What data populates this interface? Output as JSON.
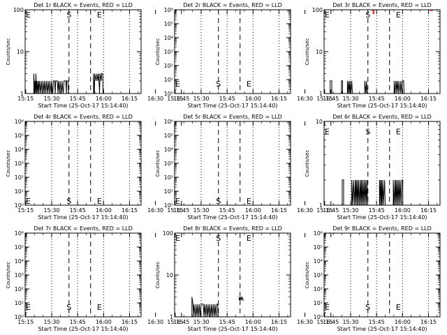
{
  "figure": {
    "time_ticks": [
      "15:15",
      "15:30",
      "15:45",
      "16:00",
      "16:15",
      "16:30",
      "16:45"
    ],
    "time_range_min": [
      0,
      67
    ],
    "start_label": "Start Time (25-Oct-17 15:14:40)",
    "ylabel": "Counts/sec",
    "colors": {
      "events": "#000000",
      "lld": "#ff0000"
    },
    "markers": {
      "dotted_lines_min": [
        15.33,
        30.33,
        45.33,
        60.33
      ],
      "dashed_lines_min": [
        25.33,
        37.83
      ],
      "S_min": 25.33,
      "E_min": 40.33
    }
  },
  "chart_data": [
    {
      "type": "line",
      "title": "Det 1r BLACK = Events, RED = LLD",
      "xlabel": "Start Time (25-Oct-17 15:14:40)",
      "ylabel": "Counts/sec",
      "yscale": "log",
      "ylim": [
        1,
        100
      ],
      "yticks": [
        {
          "v": 1,
          "t": "1"
        },
        {
          "v": 10,
          "t": "10"
        },
        {
          "v": 100,
          "t": "100"
        }
      ],
      "label_y": {
        "S": 100,
        "E": 100
      },
      "events": [
        [
          5.0,
          1
        ],
        [
          5.0,
          3
        ],
        [
          5.5,
          1
        ],
        [
          5.7,
          2
        ],
        [
          6.0,
          1
        ],
        [
          6.2,
          3
        ],
        [
          6.6,
          1
        ],
        [
          6.8,
          2
        ],
        [
          7.3,
          1
        ],
        [
          7.5,
          2
        ],
        [
          8.0,
          1
        ],
        [
          8.2,
          2
        ],
        [
          9.0,
          1
        ],
        [
          9.2,
          2
        ],
        [
          10.0,
          1
        ],
        [
          10.2,
          2
        ],
        [
          11.0,
          1
        ],
        [
          11.2,
          2
        ],
        [
          12.0,
          1
        ],
        [
          12.2,
          2
        ],
        [
          13.0,
          1
        ],
        [
          13.2,
          2
        ],
        [
          14.0,
          1
        ],
        [
          14.2,
          2
        ],
        [
          15.0,
          1
        ],
        [
          15.2,
          2
        ],
        [
          16.0,
          1
        ],
        [
          16.3,
          2
        ],
        [
          17.0,
          2
        ],
        [
          17.4,
          1
        ],
        [
          17.6,
          2
        ],
        [
          18.5,
          2
        ],
        [
          19.0,
          1
        ],
        [
          19.2,
          2
        ],
        [
          20.0,
          1
        ],
        [
          20.2,
          2
        ],
        [
          21.0,
          1
        ],
        [
          21.3,
          2
        ],
        [
          22.0,
          1
        ],
        [
          22.5,
          2
        ],
        [
          23.5,
          2
        ],
        [
          23.8,
          1
        ],
        [
          24.0,
          2
        ],
        [
          24.8,
          2
        ],
        [
          25.0,
          1
        ]
      ],
      "events_b": [
        [
          39.5,
          1
        ],
        [
          39.5,
          3
        ],
        [
          40.0,
          1
        ],
        [
          40.3,
          3
        ],
        [
          41.0,
          2
        ],
        [
          41.5,
          3
        ],
        [
          42.0,
          2
        ],
        [
          42.5,
          3
        ],
        [
          43.0,
          1
        ],
        [
          43.3,
          3
        ],
        [
          44.0,
          2
        ],
        [
          44.2,
          3
        ],
        [
          44.8,
          3
        ],
        [
          45.0,
          1
        ]
      ],
      "lld": []
    },
    {
      "type": "line",
      "title": "Det 2r BLACK = Events, RED = LLD",
      "xlabel": "Start Time (25-Oct-17 15:14:40)",
      "ylabel": "Counts/sec",
      "yscale": "log",
      "ylim": [
        1,
        1000000
      ],
      "yticks": [
        {
          "v": 1,
          "t": "10⁰"
        },
        {
          "v": 10,
          "t": "10¹"
        },
        {
          "v": 100,
          "t": "10²"
        },
        {
          "v": 1000,
          "t": "10³"
        },
        {
          "v": 10000,
          "t": "10⁴"
        },
        {
          "v": 100000,
          "t": "10⁵"
        },
        {
          "v": 1000000,
          "t": "10⁶"
        }
      ],
      "label_y": {
        "S": 10,
        "E": 10
      },
      "events": [],
      "events_b": [],
      "lld": []
    },
    {
      "type": "line",
      "title": "Det 3r BLACK = Events, RED = LLD",
      "xlabel": "Start Time (25-Oct-17 15:14:40)",
      "ylabel": "Counts/sec",
      "yscale": "log",
      "ylim": [
        1,
        100
      ],
      "yticks": [
        {
          "v": 1,
          "t": "1"
        },
        {
          "v": 10,
          "t": "10"
        },
        {
          "v": 100,
          "t": "100"
        }
      ],
      "label_y": {
        "S": 100,
        "E": 100
      },
      "events": [
        [
          3.5,
          1
        ],
        [
          3.5,
          2
        ],
        [
          4.5,
          2
        ],
        [
          4.5,
          1
        ],
        [
          10.0,
          1
        ],
        [
          10.0,
          2
        ],
        [
          10.7,
          2
        ],
        [
          10.7,
          1
        ],
        [
          13.5,
          1
        ],
        [
          13.5,
          2
        ],
        [
          14.0,
          1
        ],
        [
          14.3,
          2
        ],
        [
          14.8,
          1
        ],
        [
          15.0,
          2
        ],
        [
          15.5,
          1
        ],
        [
          16.0,
          2
        ],
        [
          16.4,
          1
        ],
        [
          23.5,
          1
        ],
        [
          23.5,
          2
        ],
        [
          24.2,
          1
        ],
        [
          24.5,
          2
        ],
        [
          25.0,
          1
        ]
      ],
      "events_b": [
        [
          40.5,
          1
        ],
        [
          40.5,
          2
        ],
        [
          41.0,
          1
        ],
        [
          41.5,
          2
        ],
        [
          42.0,
          1
        ],
        [
          42.2,
          2
        ],
        [
          43.0,
          1
        ],
        [
          43.2,
          2
        ],
        [
          44.0,
          1
        ],
        [
          44.3,
          2
        ],
        [
          45.0,
          1
        ],
        [
          45.3,
          2
        ],
        [
          46.0,
          2
        ],
        [
          46.2,
          1
        ]
      ],
      "lld": [
        [
          27.5,
          95
        ],
        [
          28.3,
          95
        ],
        [
          28.3,
          80
        ],
        [
          28.8,
          80
        ],
        [
          28.8,
          95
        ],
        [
          29.2,
          95
        ]
      ],
      "lld_b": [
        [
          61.0,
          95
        ],
        [
          63.0,
          95
        ]
      ]
    },
    {
      "type": "line",
      "title": "Det 4r BLACK = Events, RED = LLD",
      "xlabel": "Start Time (25-Oct-17 15:14:40)",
      "ylabel": "Counts/sec",
      "yscale": "log",
      "ylim": [
        1,
        1000000
      ],
      "yticks": [
        {
          "v": 1,
          "t": "10⁰"
        },
        {
          "v": 10,
          "t": "10¹"
        },
        {
          "v": 100,
          "t": "10²"
        },
        {
          "v": 1000,
          "t": "10³"
        },
        {
          "v": 10000,
          "t": "10⁴"
        },
        {
          "v": 100000,
          "t": "10⁵"
        },
        {
          "v": 1000000,
          "t": "10⁶"
        }
      ],
      "label_y": {
        "S": 1,
        "E": 1
      },
      "events": [],
      "events_b": [],
      "lld": []
    },
    {
      "type": "line",
      "title": "Det 5r BLACK = Events, RED = LLD",
      "xlabel": "Start Time (25-Oct-17 15:14:40)",
      "ylabel": "Counts/sec",
      "yscale": "log",
      "ylim": [
        1,
        1000000
      ],
      "yticks": [
        {
          "v": 1,
          "t": "10⁰"
        },
        {
          "v": 10,
          "t": "10¹"
        },
        {
          "v": 100,
          "t": "10²"
        },
        {
          "v": 1000,
          "t": "10³"
        },
        {
          "v": 10000,
          "t": "10⁴"
        },
        {
          "v": 100000,
          "t": "10⁵"
        },
        {
          "v": 1000000,
          "t": "10⁶"
        }
      ],
      "label_y": {
        "S": 1,
        "E": 1
      },
      "events": [],
      "events_b": [],
      "lld": []
    },
    {
      "type": "line",
      "title": "Det 6r BLACK = Events, RED = LLD",
      "xlabel": "Start Time (25-Oct-17 15:14:40)",
      "ylabel": "Counts/sec",
      "yscale": "log",
      "ylim": [
        1,
        10
      ],
      "yticks": [
        {
          "v": 1,
          "t": "1"
        },
        {
          "v": 10,
          "t": "10"
        }
      ],
      "label_y": {
        "S": 8.5,
        "E": 8.5
      },
      "events": [
        [
          10.5,
          1
        ],
        [
          10.5,
          2
        ],
        [
          11.3,
          2
        ],
        [
          11.3,
          1
        ],
        [
          16.0,
          1
        ],
        [
          16.0,
          2
        ],
        [
          16.5,
          1
        ],
        [
          17.0,
          2
        ],
        [
          17.5,
          1
        ],
        [
          18.0,
          2
        ],
        [
          18.3,
          1
        ],
        [
          18.6,
          2
        ],
        [
          19.0,
          1
        ],
        [
          19.3,
          2
        ],
        [
          19.7,
          1
        ],
        [
          20.0,
          2
        ],
        [
          20.5,
          1
        ],
        [
          21.0,
          2
        ],
        [
          21.3,
          1
        ],
        [
          21.6,
          2
        ],
        [
          22.0,
          1
        ],
        [
          22.4,
          2
        ],
        [
          22.8,
          1
        ],
        [
          23.2,
          2
        ],
        [
          23.6,
          1
        ],
        [
          24.0,
          2
        ],
        [
          24.4,
          1
        ],
        [
          24.8,
          2
        ],
        [
          25.2,
          1
        ]
      ],
      "events_b": [
        [
          32.0,
          1
        ],
        [
          32.0,
          2
        ],
        [
          32.3,
          1
        ],
        [
          32.6,
          2
        ],
        [
          33.0,
          1
        ],
        [
          33.2,
          2
        ],
        [
          33.5,
          1
        ],
        [
          34.0,
          2
        ],
        [
          34.3,
          1
        ],
        [
          35.0,
          2
        ],
        [
          35.3,
          1
        ],
        [
          40.0,
          1
        ],
        [
          40.0,
          2
        ],
        [
          40.5,
          1
        ],
        [
          41.0,
          2
        ],
        [
          41.3,
          1
        ],
        [
          41.6,
          2
        ],
        [
          42.0,
          1
        ],
        [
          42.4,
          2
        ],
        [
          42.8,
          1
        ],
        [
          43.2,
          2
        ],
        [
          43.6,
          1
        ],
        [
          44.0,
          2
        ],
        [
          44.5,
          1
        ],
        [
          45.0,
          2
        ],
        [
          45.5,
          2
        ],
        [
          45.5,
          1
        ]
      ],
      "lld": []
    },
    {
      "type": "line",
      "title": "Det 7r BLACK = Events, RED = LLD",
      "xlabel": "Start Time (25-Oct-17 15:14:40)",
      "ylabel": "Counts/sec",
      "yscale": "log",
      "ylim": [
        1,
        1000000
      ],
      "yticks": [
        {
          "v": 1,
          "t": "10⁰"
        },
        {
          "v": 10,
          "t": "10¹"
        },
        {
          "v": 100,
          "t": "10²"
        },
        {
          "v": 1000,
          "t": "10³"
        },
        {
          "v": 10000,
          "t": "10⁴"
        },
        {
          "v": 100000,
          "t": "10⁵"
        },
        {
          "v": 1000000,
          "t": "10⁶"
        }
      ],
      "label_y": {
        "S": 10,
        "E": 10
      },
      "events": [],
      "events_b": [],
      "lld": []
    },
    {
      "type": "line",
      "title": "Det 8r BLACK = Events, RED = LLD",
      "xlabel": "Start Time (25-Oct-17 15:14:40)",
      "ylabel": "Counts/sec",
      "yscale": "log",
      "ylim": [
        1,
        100
      ],
      "yticks": [
        {
          "v": 1,
          "t": "1"
        },
        {
          "v": 10,
          "t": "10"
        },
        {
          "v": 100,
          "t": "100"
        }
      ],
      "label_y": {
        "S": 100,
        "E": 100
      },
      "events": [
        [
          10.0,
          1
        ],
        [
          10.0,
          3
        ],
        [
          10.6,
          2
        ],
        [
          11.0,
          1
        ],
        [
          11.2,
          2
        ],
        [
          12.0,
          1
        ],
        [
          12.3,
          2
        ],
        [
          13.0,
          1
        ],
        [
          13.3,
          2
        ],
        [
          14.0,
          1
        ],
        [
          14.3,
          2
        ],
        [
          15.0,
          1
        ],
        [
          15.3,
          2
        ],
        [
          16.5,
          2
        ],
        [
          17.0,
          1
        ],
        [
          17.3,
          2
        ],
        [
          18.0,
          1
        ],
        [
          18.3,
          2
        ],
        [
          19.0,
          1
        ],
        [
          19.3,
          2
        ],
        [
          20.0,
          1
        ],
        [
          20.3,
          2
        ],
        [
          21.0,
          1
        ],
        [
          21.3,
          2
        ],
        [
          22.0,
          1
        ],
        [
          22.3,
          2
        ],
        [
          23.0,
          1
        ],
        [
          23.3,
          2
        ],
        [
          24.0,
          1
        ],
        [
          24.3,
          2
        ],
        [
          25.0,
          2
        ],
        [
          25.0,
          1
        ]
      ],
      "events_b": [
        [
          37.3,
          2.5
        ],
        [
          37.3,
          3
        ],
        [
          37.8,
          2.5
        ],
        [
          38.2,
          3
        ],
        [
          38.6,
          2.5
        ],
        [
          39.0,
          3
        ],
        [
          39.5,
          2.5
        ],
        [
          40.0,
          2.5
        ]
      ],
      "lld": []
    },
    {
      "type": "line",
      "title": "Det 9r BLACK = Events, RED = LLD",
      "xlabel": "Start Time (25-Oct-17 15:14:40)",
      "ylabel": "Counts/sec",
      "yscale": "log",
      "ylim": [
        1,
        1000000
      ],
      "yticks": [
        {
          "v": 1,
          "t": "10⁰"
        },
        {
          "v": 10,
          "t": "10¹"
        },
        {
          "v": 100,
          "t": "10²"
        },
        {
          "v": 1000,
          "t": "10³"
        },
        {
          "v": 10000,
          "t": "10⁴"
        },
        {
          "v": 100000,
          "t": "10⁵"
        },
        {
          "v": 1000000,
          "t": "10⁶"
        }
      ],
      "label_y": {
        "S": 10,
        "E": 10
      },
      "events": [],
      "events_b": [],
      "lld": []
    }
  ]
}
